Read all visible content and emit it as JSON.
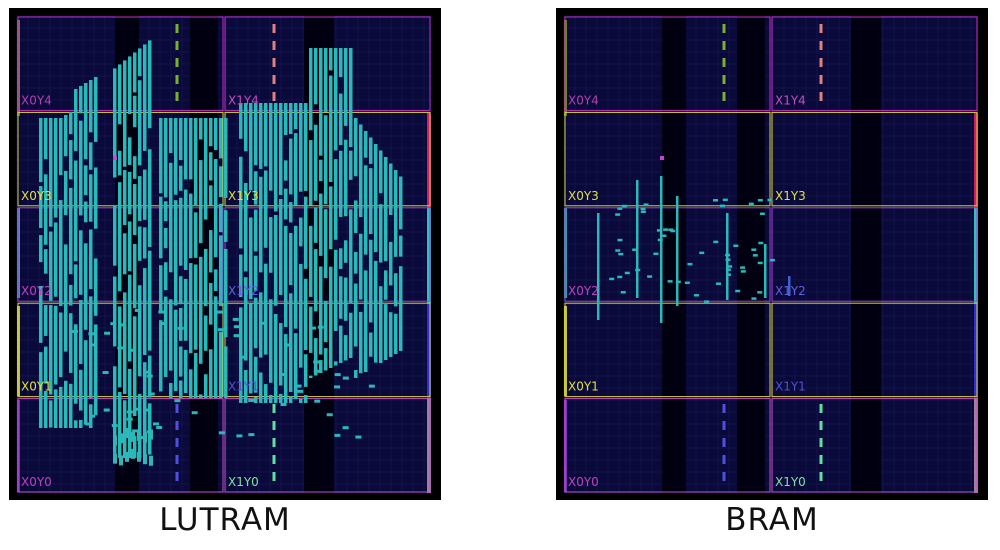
{
  "panels": [
    {
      "caption": "LUTRAM",
      "regions": [
        "X0Y4",
        "X1Y4",
        "X0Y3",
        "X1Y3",
        "X0Y2",
        "X1Y2",
        "X0Y1",
        "X1Y1",
        "X0Y0",
        "X1Y0"
      ]
    },
    {
      "caption": "BRAM",
      "regions": [
        "X0Y4",
        "X1Y4",
        "X0Y3",
        "X1Y3",
        "X0Y2",
        "X1Y2",
        "X0Y1",
        "X1Y1",
        "X0Y0",
        "X1Y0"
      ]
    }
  ],
  "colors": {
    "background": "#000000",
    "fabric": "#0a0a3a",
    "grid": "#1a1a5a",
    "cell": "#2bb8b8",
    "row_colors": [
      "#c030c0",
      "#d8d040",
      "#a040d0",
      "#d8d040",
      "#c050c0"
    ],
    "label_colors": {
      "X0Y4": "#b040b0",
      "X1Y4": "#c050c0",
      "X0Y3": "#e0e040",
      "X1Y3": "#e0e040",
      "X0Y2": "#c040c0",
      "X1Y2": "#6060e0",
      "X0Y1": "#e0e040",
      "X1Y1": "#5050d0",
      "X0Y0": "#c040c0",
      "X1Y0": "#80e0a0"
    }
  }
}
